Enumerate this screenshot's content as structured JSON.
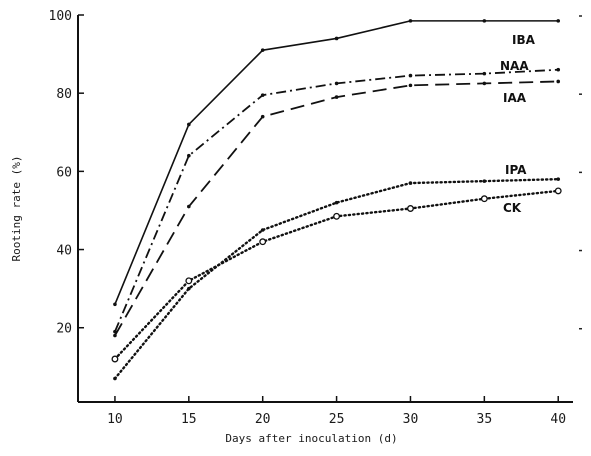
{
  "chart_data": {
    "type": "line",
    "title": "",
    "xlabel": "Days after inoculation (d)",
    "ylabel": "Rooting rate (%)",
    "x": [
      10,
      15,
      20,
      25,
      30,
      35,
      40
    ],
    "x_ticks": [
      "10",
      "15",
      "20",
      "25",
      "30",
      "35",
      "40"
    ],
    "y_ticks": [
      "20",
      "40",
      "60",
      "80",
      "100"
    ],
    "xlim": [
      7.5,
      41
    ],
    "ylim": [
      1,
      100
    ],
    "grid": false,
    "legend": "inline labels at line ends",
    "series": [
      {
        "name": "IBA",
        "style": "solid",
        "color": "#111111",
        "values": [
          26,
          72,
          91,
          94,
          98.5,
          98.5,
          98.5
        ]
      },
      {
        "name": "NAA",
        "style": "dashdot",
        "color": "#111111",
        "values": [
          19,
          64,
          79.5,
          82.5,
          84.5,
          85,
          86
        ]
      },
      {
        "name": "IAA",
        "style": "dashed",
        "color": "#111111",
        "values": [
          18,
          51,
          74,
          79,
          82,
          82.5,
          83
        ]
      },
      {
        "name": "IPA",
        "style": "dotted",
        "color": "#111111",
        "values": [
          7,
          30,
          45,
          52,
          57,
          57.5,
          58
        ]
      },
      {
        "name": "CK",
        "style": "dotted-circle",
        "color": "#111111",
        "values": [
          12,
          32,
          42,
          48.5,
          50.5,
          53,
          55
        ]
      }
    ]
  }
}
